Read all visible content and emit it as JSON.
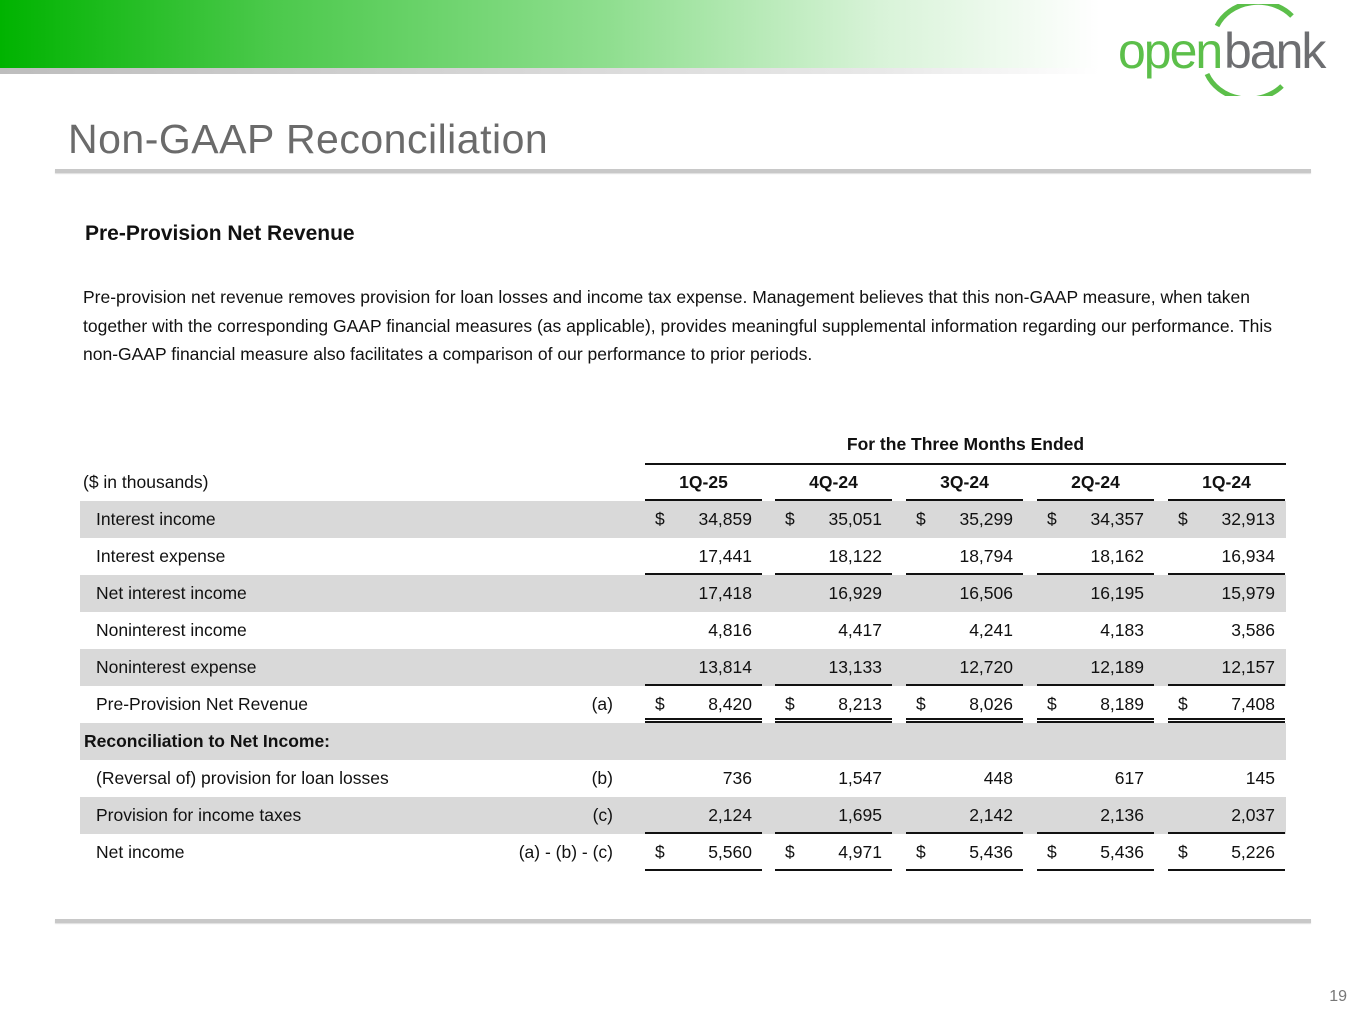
{
  "brand": {
    "logo_text_1": "open",
    "logo_text_2": "bank",
    "green": "#5cbf4a",
    "gray": "#6d6e71"
  },
  "page": {
    "title": "Non-GAAP Reconciliation",
    "number": "19"
  },
  "section": {
    "subtitle": "Pre-Provision Net Revenue",
    "description": "Pre-provision net revenue removes provision for loan losses and income tax expense. Management believes that this non-GAAP measure, when taken together with the corresponding GAAP financial measures (as applicable), provides meaningful supplemental information regarding our performance. This non-GAAP financial measure also facilitates a comparison of our performance to prior periods."
  },
  "table": {
    "group_header": "For the Three Months Ended",
    "unit_label": "($ in thousands)",
    "columns": [
      "1Q-25",
      "4Q-24",
      "3Q-24",
      "2Q-24",
      "1Q-24"
    ],
    "rows": [
      {
        "label": "Interest income",
        "ref": "",
        "dollar": true,
        "values": [
          "34,859",
          "35,051",
          "35,299",
          "34,357",
          "32,913"
        ],
        "border": ""
      },
      {
        "label": "Interest expense",
        "ref": "",
        "dollar": false,
        "values": [
          "17,441",
          "18,122",
          "18,794",
          "18,162",
          "16,934"
        ],
        "border": "single"
      },
      {
        "label": "Net interest income",
        "ref": "",
        "dollar": false,
        "values": [
          "17,418",
          "16,929",
          "16,506",
          "16,195",
          "15,979"
        ],
        "border": ""
      },
      {
        "label": "Noninterest income",
        "ref": "",
        "dollar": false,
        "values": [
          "4,816",
          "4,417",
          "4,241",
          "4,183",
          "3,586"
        ],
        "border": ""
      },
      {
        "label": "Noninterest expense",
        "ref": "",
        "dollar": false,
        "values": [
          "13,814",
          "13,133",
          "12,720",
          "12,189",
          "12,157"
        ],
        "border": "single"
      },
      {
        "label": "Pre-Provision Net Revenue",
        "ref": "(a)",
        "dollar": true,
        "values": [
          "8,420",
          "8,213",
          "8,026",
          "8,189",
          "7,408"
        ],
        "border": "double"
      },
      {
        "label": "Reconciliation  to Net Income:",
        "ref": "",
        "bold": true,
        "dollar": false,
        "values": [
          "",
          "",
          "",
          "",
          ""
        ],
        "border": ""
      },
      {
        "label": "(Reversal of) provision for loan losses",
        "ref": "(b)",
        "dollar": false,
        "values": [
          "736",
          "1,547",
          "448",
          "617",
          "145"
        ],
        "border": ""
      },
      {
        "label": "Provision for income taxes",
        "ref": "(c)",
        "dollar": false,
        "values": [
          "2,124",
          "1,695",
          "2,142",
          "2,136",
          "2,037"
        ],
        "border": "single"
      },
      {
        "label": "Net income",
        "ref": "(a) - (b) - (c)",
        "dollar": true,
        "values": [
          "5,560",
          "4,971",
          "5,436",
          "5,436",
          "5,226"
        ],
        "border": "single"
      }
    ]
  }
}
